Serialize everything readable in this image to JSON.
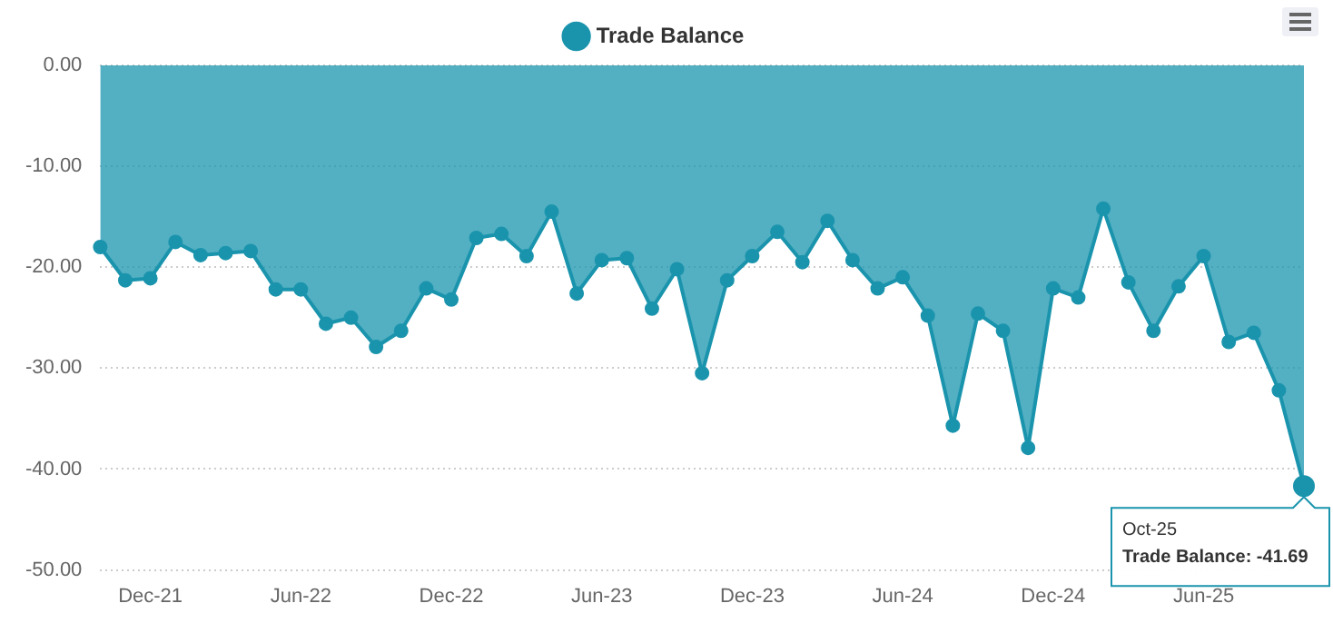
{
  "chart_data": {
    "type": "area",
    "categories": [
      null,
      null,
      "Dec-21",
      null,
      null,
      null,
      null,
      null,
      "Jun-22",
      null,
      null,
      null,
      null,
      null,
      "Dec-22",
      null,
      null,
      null,
      null,
      null,
      "Jun-23",
      null,
      null,
      null,
      null,
      null,
      "Dec-23",
      null,
      null,
      null,
      null,
      null,
      "Jun-24",
      null,
      null,
      null,
      null,
      null,
      "Dec-24",
      null,
      null,
      null,
      null,
      null,
      "Jun-25",
      null,
      null,
      null,
      null
    ],
    "series": [
      {
        "name": "Trade Balance",
        "color": "#1a94ad",
        "values": [
          -18.0,
          -21.3,
          -21.1,
          -17.5,
          -18.8,
          -18.6,
          -18.4,
          -22.2,
          -22.2,
          -25.6,
          -25.0,
          -27.9,
          -26.3,
          -22.1,
          -23.2,
          -17.1,
          -16.7,
          -18.9,
          -14.5,
          -22.6,
          -19.3,
          -19.1,
          -24.1,
          -20.2,
          -30.5,
          -21.3,
          -18.9,
          -16.5,
          -19.5,
          -15.4,
          -19.3,
          -22.1,
          -21.0,
          -24.8,
          -35.7,
          -24.6,
          -26.3,
          -37.9,
          -22.1,
          -23.0,
          -14.2,
          -21.5,
          -26.3,
          -21.9,
          -18.9,
          -27.4,
          -26.5,
          -32.2,
          -41.69
        ]
      }
    ],
    "ylim": [
      -50,
      0
    ],
    "yticks": [
      {
        "value": -50,
        "label": "-50.00"
      },
      {
        "value": -40,
        "label": "-40.00"
      },
      {
        "value": -30,
        "label": "-30.00"
      },
      {
        "value": -20,
        "label": "-20.00"
      },
      {
        "value": -10,
        "label": "-10.00"
      },
      {
        "value": 0,
        "label": "0.00"
      }
    ],
    "grid": "y",
    "legend": "top",
    "marker": "circle",
    "annotations": [
      "Oct-25",
      "Trade Balance: -41.69"
    ]
  }
}
